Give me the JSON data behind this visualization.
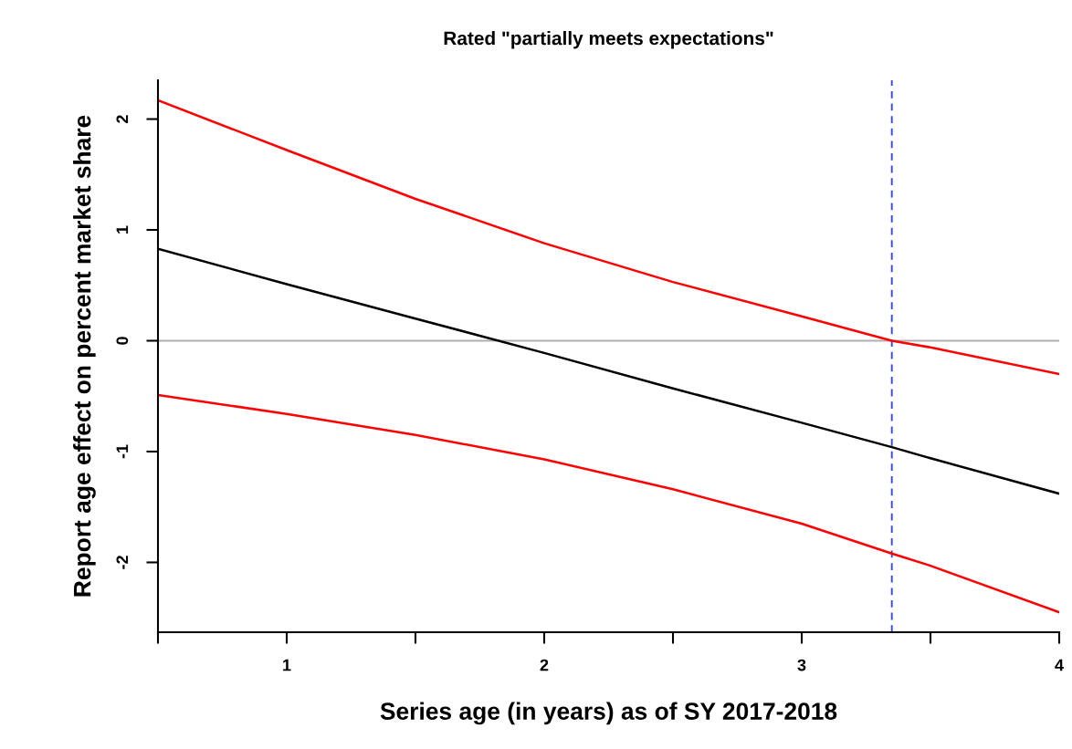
{
  "chart_data": {
    "type": "line",
    "title": "Rated \"partially meets expectations\"",
    "xlabel": "Series age (in years) as of SY 2017-2018",
    "ylabel": "Report age effect on percent market share",
    "x": [
      0.5,
      1,
      1.5,
      2,
      2.5,
      3,
      3.35,
      3.5,
      4
    ],
    "series": [
      {
        "color": "#000000",
        "values": [
          0.83,
          0.51,
          0.2,
          -0.11,
          -0.43,
          -0.74,
          -0.96,
          -1.06,
          -1.38
        ]
      },
      {
        "color": "#ff0000",
        "values": [
          2.17,
          1.72,
          1.28,
          0.88,
          0.53,
          0.22,
          0.0,
          -0.06,
          -0.3
        ]
      },
      {
        "color": "#ff0000",
        "values": [
          -0.49,
          -0.66,
          -0.85,
          -1.07,
          -1.34,
          -1.65,
          -1.92,
          -2.03,
          -2.45
        ]
      }
    ],
    "xlim": [
      0.5,
      4
    ],
    "ylim": [
      -2.63,
      2.35
    ],
    "xticks": [
      {
        "value": 0.5,
        "label": null
      },
      1,
      {
        "value": 1.5,
        "label": null
      },
      2,
      {
        "value": 2.5,
        "label": null
      },
      3,
      {
        "value": 3.5,
        "label": null
      },
      4
    ],
    "yticks": [
      -2,
      -1,
      0,
      1,
      2
    ],
    "ref_lines": [
      {
        "axis": "y",
        "value": 0,
        "color": "#b0b0b0",
        "line_style": "solid"
      },
      {
        "axis": "x",
        "value": 3.35,
        "color": "#3a4fd6",
        "line_style": "dashed"
      }
    ],
    "grid": false,
    "legend": false,
    "marker": "none",
    "line_style": "solid"
  }
}
